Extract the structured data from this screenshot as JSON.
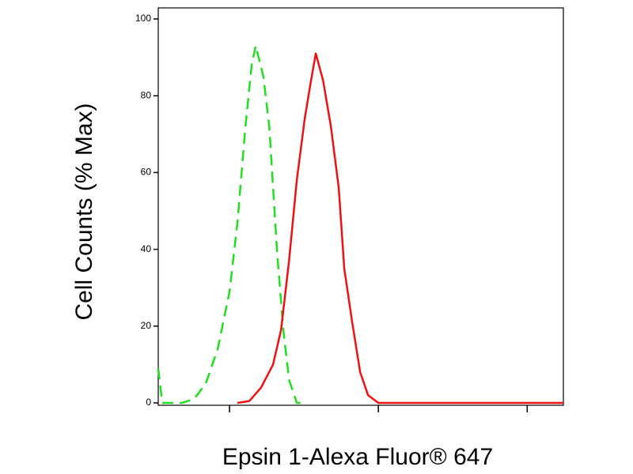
{
  "chart_data": {
    "type": "line",
    "x_label": "Epsin 1-Alexa Fluor® 647",
    "y_label": "Cell Counts (% Max)",
    "xscale": "log",
    "xlim": [
      3.32,
      1750
    ],
    "xticks": [
      10,
      100,
      1000
    ],
    "ylim": [
      0,
      100
    ],
    "yticks": [
      0,
      20,
      40,
      60,
      80,
      100
    ],
    "series": [
      {
        "color": "#22dd22",
        "dash": true,
        "x": [
          3.32,
          3.53,
          4.8,
          5.77,
          6.92,
          8.32,
          10,
          11.3,
          12.8,
          14.1,
          15,
          16.9,
          18.5,
          20.9,
          23,
          25.1,
          28.3,
          32
        ],
        "values": [
          9,
          0,
          0,
          1,
          5,
          14,
          29,
          47,
          72,
          88,
          93,
          85,
          72,
          39,
          19,
          6,
          0,
          0
        ]
      },
      {
        "color": "#ee1111",
        "dash": false,
        "x": [
          11.3,
          13.6,
          16.3,
          19.6,
          22.2,
          25.1,
          28.3,
          32,
          35.3,
          38,
          42.5,
          48,
          54.2,
          59,
          66.7,
          75.5,
          85.3,
          100,
          1750
        ],
        "values": [
          0,
          0.5,
          4,
          10,
          19,
          37,
          58,
          74,
          84,
          91,
          84,
          72,
          56,
          35,
          21,
          8,
          2,
          0,
          0
        ]
      }
    ]
  }
}
